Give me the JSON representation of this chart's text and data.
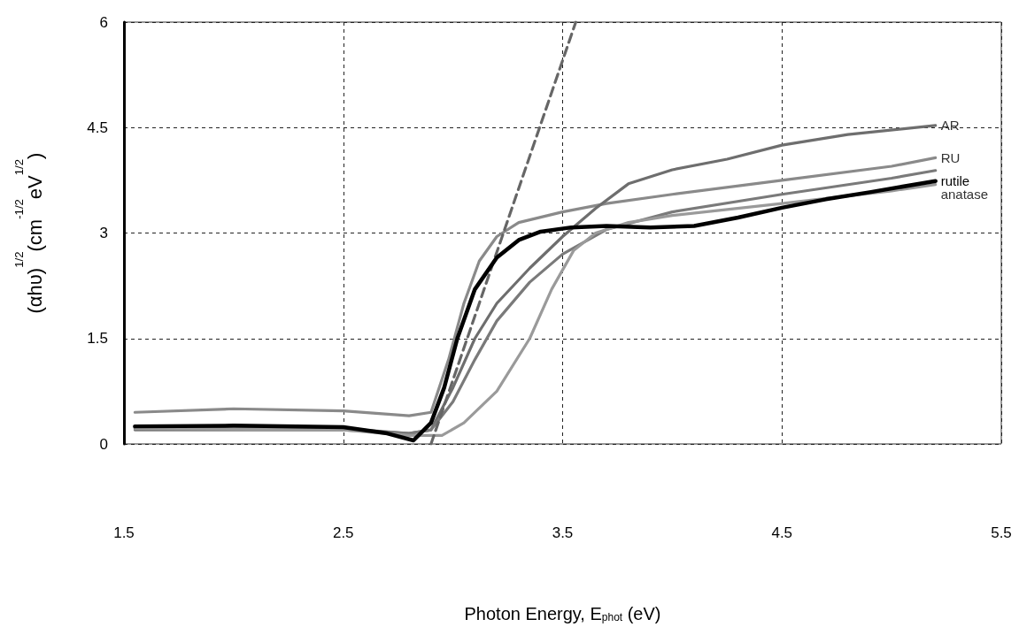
{
  "chart_data": {
    "type": "line",
    "xlabel": "Photon Energy, E$_{phot}$ (eV)",
    "ylabel": "(αhυ)$^{1/2}$(cm$^{-1/2}$eV$^{1/2}$)",
    "xlim": [
      1.5,
      5.5
    ],
    "xticks": [
      1.5,
      2.5,
      3.5,
      4.5,
      5.5
    ],
    "ylim": [
      0,
      6
    ],
    "yticks": [
      0,
      1.5,
      3,
      4.5,
      6
    ],
    "grid": true,
    "marker": "none",
    "series": [
      {
        "name": "rutile",
        "color": "#000000",
        "x": [
          1.55,
          2.0,
          2.5,
          2.7,
          2.82,
          2.9,
          2.96,
          3.02,
          3.1,
          3.2,
          3.3,
          3.4,
          3.54,
          3.7,
          3.9,
          4.1,
          4.3,
          4.5,
          4.7,
          4.9,
          5.2
        ],
        "values": [
          0.25,
          0.26,
          0.24,
          0.15,
          0.05,
          0.3,
          0.8,
          1.5,
          2.2,
          2.65,
          2.9,
          3.02,
          3.08,
          3.1,
          3.08,
          3.1,
          3.22,
          3.36,
          3.48,
          3.58,
          3.74
        ]
      },
      {
        "name": "RU",
        "color": "#8a8a8a",
        "x": [
          1.55,
          2.0,
          2.5,
          2.8,
          2.9,
          2.98,
          3.05,
          3.12,
          3.2,
          3.3,
          3.5,
          3.7,
          4.0,
          4.5,
          5.0,
          5.2
        ],
        "values": [
          0.45,
          0.5,
          0.47,
          0.4,
          0.45,
          1.2,
          2.0,
          2.6,
          2.95,
          3.15,
          3.3,
          3.42,
          3.55,
          3.75,
          3.95,
          4.07
        ]
      },
      {
        "name": "AR",
        "color": "#6e6e6e",
        "x": [
          1.55,
          2.5,
          2.8,
          2.9,
          3.0,
          3.1,
          3.2,
          3.35,
          3.5,
          3.65,
          3.8,
          4.0,
          4.25,
          4.5,
          4.8,
          5.2
        ],
        "values": [
          0.22,
          0.22,
          0.15,
          0.2,
          0.8,
          1.5,
          2.0,
          2.5,
          2.95,
          3.35,
          3.7,
          3.9,
          4.05,
          4.25,
          4.4,
          4.53
        ]
      },
      {
        "color": "#7a7a7a",
        "x": [
          1.55,
          2.5,
          2.8,
          2.9,
          3.0,
          3.1,
          3.2,
          3.35,
          3.5,
          3.7,
          4.0,
          4.5,
          5.0,
          5.2
        ],
        "values": [
          0.2,
          0.2,
          0.15,
          0.2,
          0.6,
          1.2,
          1.75,
          2.3,
          2.7,
          3.05,
          3.3,
          3.55,
          3.78,
          3.89
        ]
      },
      {
        "name": "anatase",
        "color": "#9a9a9a",
        "x": [
          1.55,
          2.5,
          2.8,
          2.95,
          3.05,
          3.2,
          3.35,
          3.45,
          3.55,
          3.65,
          3.8,
          4.0,
          4.5,
          5.0,
          5.2
        ],
        "values": [
          0.22,
          0.2,
          0.12,
          0.12,
          0.3,
          0.75,
          1.5,
          2.2,
          2.75,
          3.0,
          3.15,
          3.25,
          3.42,
          3.6,
          3.69
        ]
      },
      {
        "color": "#666666",
        "line_style": "dashed",
        "x": [
          2.9,
          3.56
        ],
        "values": [
          0,
          6
        ]
      }
    ]
  }
}
